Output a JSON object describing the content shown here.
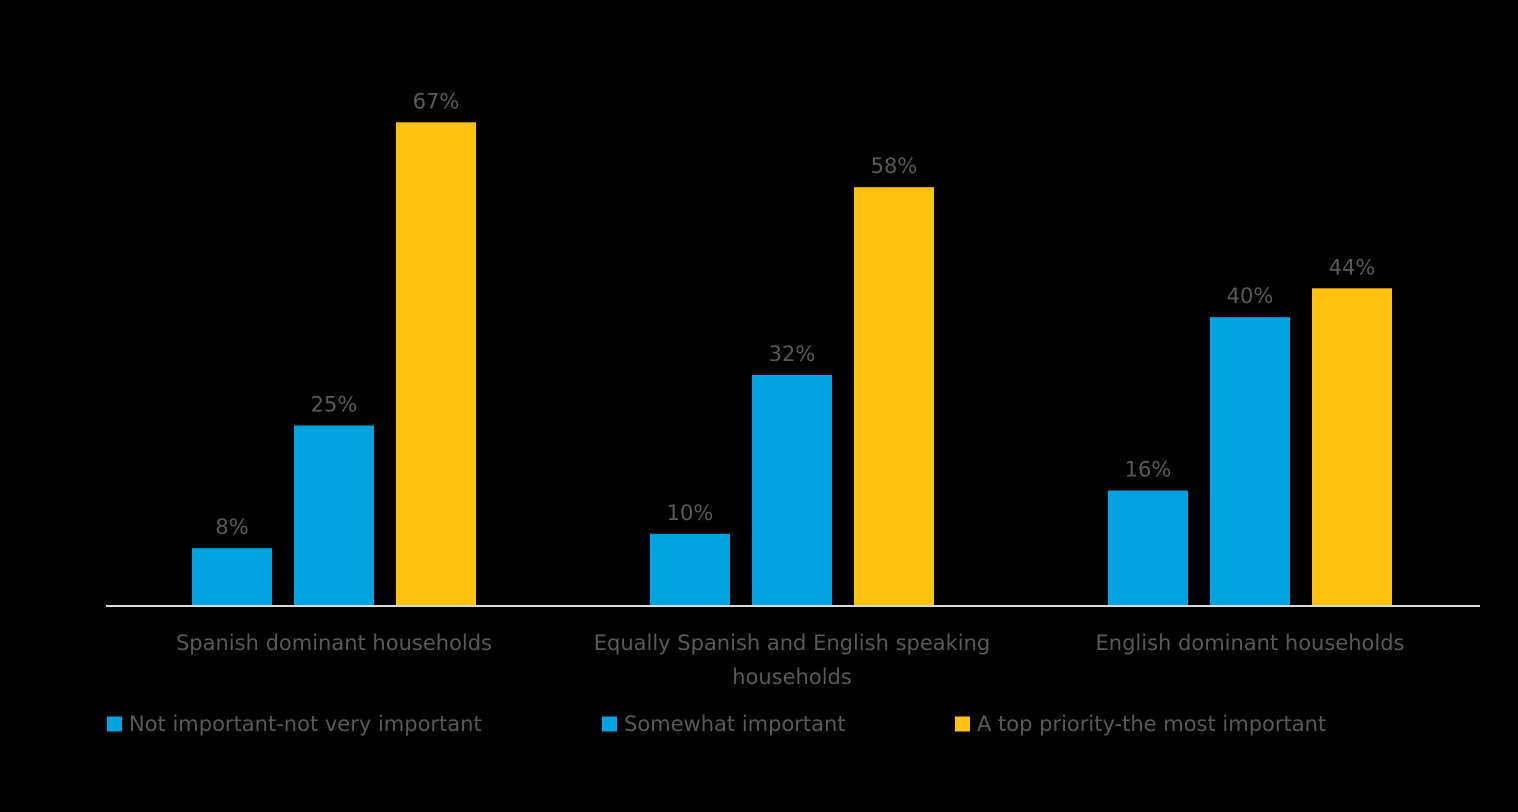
{
  "chart_data": {
    "type": "bar",
    "title": "",
    "xlabel": "",
    "ylabel": "",
    "ylim": [
      0,
      70
    ],
    "grid": false,
    "legend_position": "bottom",
    "value_suffix": "%",
    "categories": [
      [
        "Spanish dominant households"
      ],
      [
        "Equally Spanish and English speaking",
        "households"
      ],
      [
        "English dominant households"
      ]
    ],
    "series": [
      {
        "name": "Not important-not very important",
        "color": "#00A2E0",
        "values": [
          8,
          10,
          16
        ]
      },
      {
        "name": "Somewhat important",
        "color": "#00A2E0",
        "values": [
          25,
          32,
          40
        ]
      },
      {
        "name": "A top priority-the most important",
        "color": "#FFC20E",
        "values": [
          67,
          58,
          44
        ]
      }
    ],
    "axis_color": "#D9D9D9"
  }
}
